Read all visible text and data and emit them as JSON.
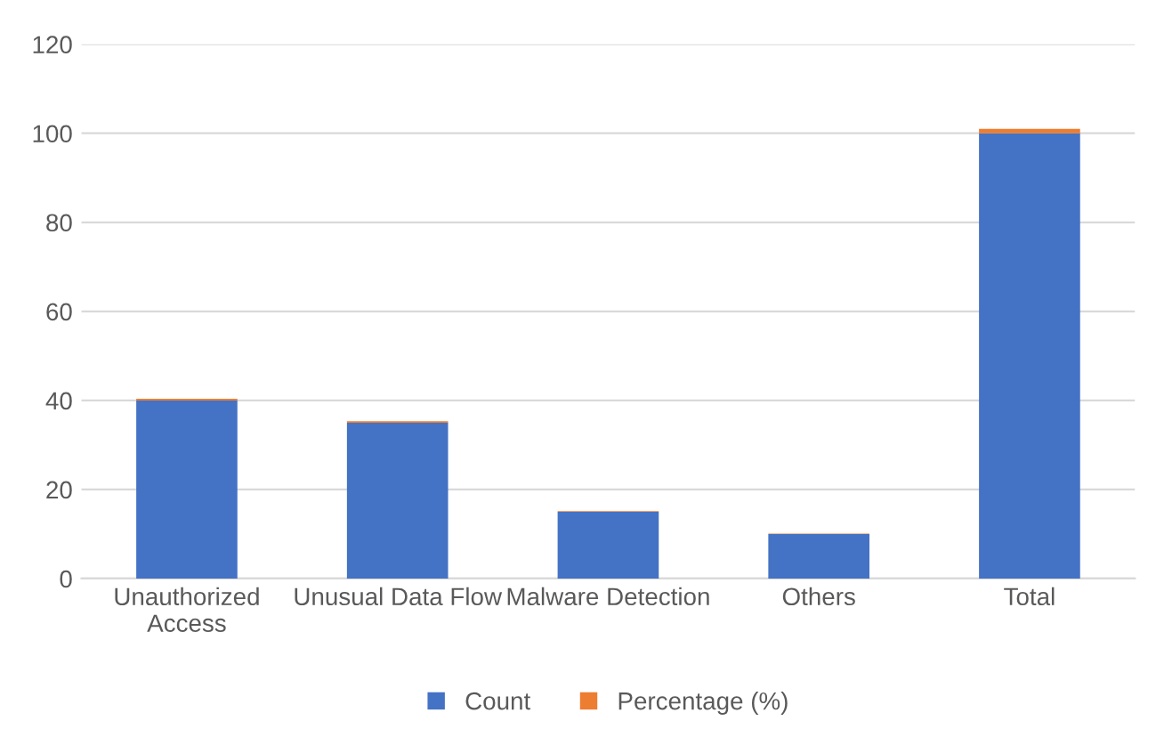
{
  "chart_data": {
    "type": "bar",
    "stacked": true,
    "categories": [
      "Unauthorized\nAccess",
      "Unusual Data Flow",
      "Malware Detection",
      "Others",
      "Total"
    ],
    "series": [
      {
        "name": "Count",
        "color": "#4472c4",
        "values": [
          40,
          35,
          15,
          10,
          100
        ]
      },
      {
        "name": "Percentage (%)",
        "color": "#ed7d31",
        "values": [
          0.4,
          0.35,
          0.15,
          0.1,
          1
        ]
      }
    ],
    "ylim": [
      0,
      120
    ],
    "yticks": [
      0,
      20,
      40,
      60,
      80,
      100,
      120
    ],
    "grid": "y",
    "legend": "bottom"
  }
}
